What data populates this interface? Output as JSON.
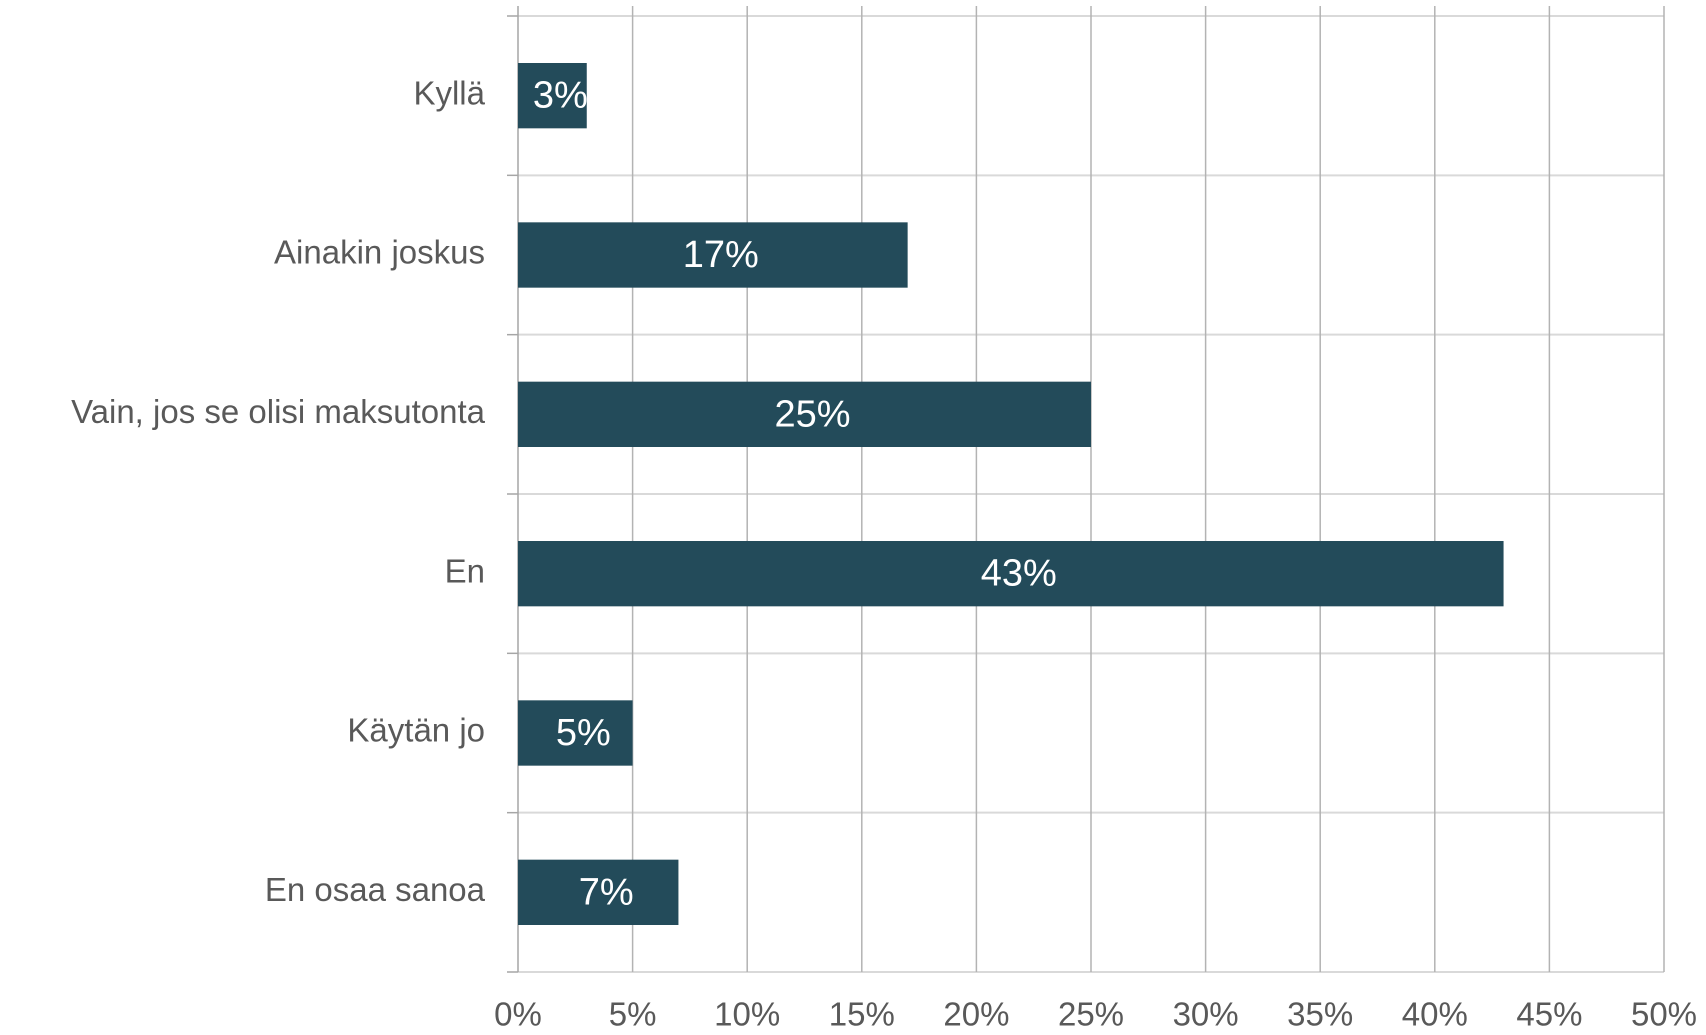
{
  "chart_data": {
    "type": "bar",
    "orientation": "horizontal",
    "categories": [
      "Kyllä",
      "Ainakin joskus",
      "Vain, jos se olisi maksutonta",
      "En",
      "Käytän jo",
      "En osaa sanoa"
    ],
    "values": [
      3,
      17,
      25,
      43,
      5,
      7
    ],
    "value_labels": [
      "3%",
      "17%",
      "25%",
      "43%",
      "5%",
      "7%"
    ],
    "color": "#234b5a",
    "xlim": [
      0,
      50
    ],
    "xticks": [
      {
        "value": 0,
        "label": "0%"
      },
      {
        "value": 5,
        "label": "5%"
      },
      {
        "value": 10,
        "label": "10%"
      },
      {
        "value": 15,
        "label": "15%"
      },
      {
        "value": 20,
        "label": "20%"
      },
      {
        "value": 25,
        "label": "25%"
      },
      {
        "value": 30,
        "label": "30%"
      },
      {
        "value": 35,
        "label": "35%"
      },
      {
        "value": 40,
        "label": "40%"
      },
      {
        "value": 45,
        "label": "45%"
      },
      {
        "value": 50,
        "label": "50%"
      }
    ],
    "grid": true
  }
}
